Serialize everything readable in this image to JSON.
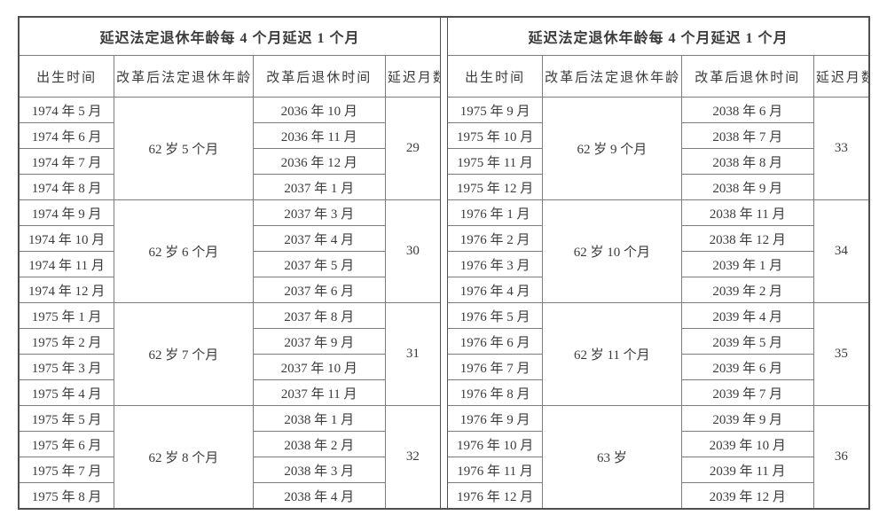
{
  "colors": {
    "text": "#3b3b3b",
    "border_inner": "#7d7d7d",
    "border_outer": "#4f4f4f",
    "background": "#ffffff"
  },
  "tables": [
    {
      "title": "延迟法定退休年龄每 4 个月延迟 1 个月",
      "columns": [
        "出生时间",
        "改革后法定退休年龄",
        "改革后退休时间",
        "延迟月数"
      ],
      "groups": [
        {
          "birth_months": [
            "1974 年 5 月",
            "1974 年 6 月",
            "1974 年 7 月",
            "1974 年 8 月"
          ],
          "retirement_age": "62 岁 5 个月",
          "retirement_months": [
            "2036 年 10 月",
            "2036 年 11 月",
            "2036 年 12 月",
            "2037 年 1 月"
          ],
          "delay_months": "29"
        },
        {
          "birth_months": [
            "1974 年 9 月",
            "1974 年 10 月",
            "1974 年 11 月",
            "1974 年 12 月"
          ],
          "retirement_age": "62 岁 6 个月",
          "retirement_months": [
            "2037 年 3 月",
            "2037 年 4 月",
            "2037 年 5 月",
            "2037 年 6 月"
          ],
          "delay_months": "30"
        },
        {
          "birth_months": [
            "1975 年 1 月",
            "1975 年 2 月",
            "1975 年 3 月",
            "1975 年 4 月"
          ],
          "retirement_age": "62 岁 7 个月",
          "retirement_months": [
            "2037 年 8 月",
            "2037 年 9 月",
            "2037 年 10 月",
            "2037 年 11 月"
          ],
          "delay_months": "31"
        },
        {
          "birth_months": [
            "1975 年 5 月",
            "1975 年 6 月",
            "1975 年 7 月",
            "1975 年 8 月"
          ],
          "retirement_age": "62 岁 8 个月",
          "retirement_months": [
            "2038 年 1 月",
            "2038 年 2 月",
            "2038 年 3 月",
            "2038 年 4 月"
          ],
          "delay_months": "32"
        }
      ]
    },
    {
      "title": "延迟法定退休年龄每 4 个月延迟 1 个月",
      "columns": [
        "出生时间",
        "改革后法定退休年龄",
        "改革后退休时间",
        "延迟月数"
      ],
      "groups": [
        {
          "birth_months": [
            "1975 年 9 月",
            "1975 年 10 月",
            "1975 年 11 月",
            "1975 年 12 月"
          ],
          "retirement_age": "62 岁 9 个月",
          "retirement_months": [
            "2038 年 6 月",
            "2038 年 7 月",
            "2038 年 8 月",
            "2038 年 9 月"
          ],
          "delay_months": "33"
        },
        {
          "birth_months": [
            "1976 年 1 月",
            "1976 年 2 月",
            "1976 年 3 月",
            "1976 年 4 月"
          ],
          "retirement_age": "62 岁 10 个月",
          "retirement_months": [
            "2038 年 11 月",
            "2038 年 12 月",
            "2039 年 1 月",
            "2039 年 2 月"
          ],
          "delay_months": "34"
        },
        {
          "birth_months": [
            "1976 年 5 月",
            "1976 年 6 月",
            "1976 年 7 月",
            "1976 年 8 月"
          ],
          "retirement_age": "62 岁 11 个月",
          "retirement_months": [
            "2039 年 4 月",
            "2039 年 5 月",
            "2039 年 6 月",
            "2039 年 7 月"
          ],
          "delay_months": "35"
        },
        {
          "birth_months": [
            "1976 年 9 月",
            "1976 年 10 月",
            "1976 年 11 月",
            "1976 年 12 月"
          ],
          "retirement_age": "63 岁",
          "retirement_months": [
            "2039 年 9 月",
            "2039 年 10 月",
            "2039 年 11 月",
            "2039 年 12 月"
          ],
          "delay_months": "36"
        }
      ]
    }
  ]
}
